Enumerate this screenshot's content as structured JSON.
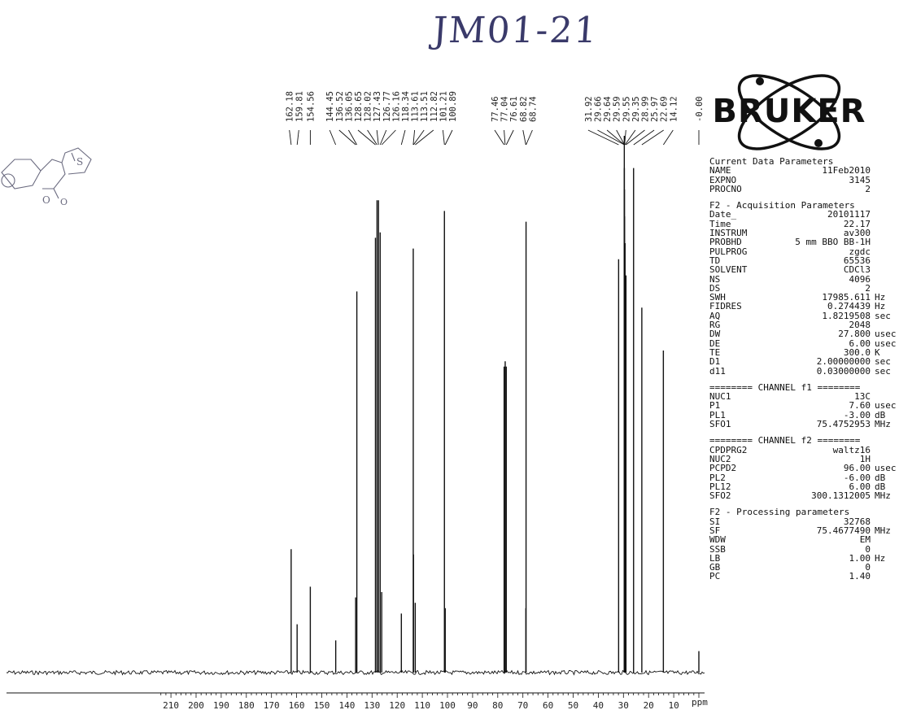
{
  "annotation_handwritten": "JM01-21",
  "logo": {
    "text": "BRUKER"
  },
  "chart_data": {
    "type": "nmr-spectrum",
    "nucleus": "13C",
    "x_unit": "ppm",
    "x_axis_reversed": true,
    "x_range": [
      -5,
      215
    ],
    "x_ticks": [
      210,
      200,
      190,
      180,
      170,
      160,
      150,
      140,
      130,
      120,
      110,
      100,
      90,
      80,
      70,
      60,
      50,
      40,
      30,
      20,
      10
    ],
    "peaks": [
      {
        "ppm": 162.18,
        "intensity": 0.23
      },
      {
        "ppm": 159.81,
        "intensity": 0.09
      },
      {
        "ppm": 154.56,
        "intensity": 0.16
      },
      {
        "ppm": 144.45,
        "intensity": 0.06
      },
      {
        "ppm": 136.52,
        "intensity": 0.14
      },
      {
        "ppm": 136.05,
        "intensity": 0.71
      },
      {
        "ppm": 128.65,
        "intensity": 0.81
      },
      {
        "ppm": 128.02,
        "intensity": 0.88
      },
      {
        "ppm": 127.43,
        "intensity": 0.88
      },
      {
        "ppm": 126.77,
        "intensity": 0.82
      },
      {
        "ppm": 126.16,
        "intensity": 0.15
      },
      {
        "ppm": 118.34,
        "intensity": 0.11
      },
      {
        "ppm": 113.61,
        "intensity": 0.79
      },
      {
        "ppm": 113.51,
        "intensity": 0.22
      },
      {
        "ppm": 112.82,
        "intensity": 0.13
      },
      {
        "ppm": 101.21,
        "intensity": 0.86
      },
      {
        "ppm": 100.89,
        "intensity": 0.12
      },
      {
        "ppm": 77.46,
        "intensity": 0.57
      },
      {
        "ppm": 77.04,
        "intensity": 0.58
      },
      {
        "ppm": 76.61,
        "intensity": 0.57
      },
      {
        "ppm": 68.82,
        "intensity": 0.12
      },
      {
        "ppm": 68.74,
        "intensity": 0.84
      },
      {
        "ppm": 31.92,
        "intensity": 0.77
      },
      {
        "ppm": 29.66,
        "intensity": 1.0
      },
      {
        "ppm": 29.64,
        "intensity": 0.94
      },
      {
        "ppm": 29.59,
        "intensity": 0.9
      },
      {
        "ppm": 29.55,
        "intensity": 0.85
      },
      {
        "ppm": 29.35,
        "intensity": 0.8
      },
      {
        "ppm": 28.99,
        "intensity": 0.74
      },
      {
        "ppm": 25.97,
        "intensity": 0.94
      },
      {
        "ppm": 22.69,
        "intensity": 0.68
      },
      {
        "ppm": 14.12,
        "intensity": 0.6
      },
      {
        "ppm": 0.0,
        "intensity": 0.04
      }
    ],
    "peak_labels": [
      "162.18",
      "159.81",
      "154.56",
      "144.45",
      "136.52",
      "136.05",
      "128.65",
      "128.02",
      "127.43",
      "126.77",
      "126.16",
      "118.34",
      "113.61",
      "113.51",
      "112.82",
      "101.21",
      "100.89",
      "77.46",
      "77.04",
      "76.61",
      "68.82",
      "68.74",
      "31.92",
      "29.66",
      "29.64",
      "29.59",
      "29.55",
      "29.35",
      "28.99",
      "25.97",
      "22.69",
      "14.12",
      "-0.00"
    ]
  },
  "parameters": [
    {
      "title": "Current Data Parameters",
      "rows": [
        {
          "k": "NAME",
          "v": "11Feb2010",
          "u": ""
        },
        {
          "k": "EXPNO",
          "v": "3145",
          "u": ""
        },
        {
          "k": "PROCNO",
          "v": "2",
          "u": ""
        }
      ]
    },
    {
      "title": "F2 - Acquisition Parameters",
      "rows": [
        {
          "k": "Date_",
          "v": "20101117",
          "u": ""
        },
        {
          "k": "Time",
          "v": "22.17",
          "u": ""
        },
        {
          "k": "INSTRUM",
          "v": "av300",
          "u": ""
        },
        {
          "k": "PROBHD",
          "v": "5 mm BBO BB-1H",
          "u": ""
        },
        {
          "k": "PULPROG",
          "v": "zgdc",
          "u": ""
        },
        {
          "k": "TD",
          "v": "65536",
          "u": ""
        },
        {
          "k": "SOLVENT",
          "v": "CDCl3",
          "u": ""
        },
        {
          "k": "NS",
          "v": "4096",
          "u": ""
        },
        {
          "k": "DS",
          "v": "2",
          "u": ""
        },
        {
          "k": "SWH",
          "v": "17985.611",
          "u": "Hz"
        },
        {
          "k": "FIDRES",
          "v": "0.274439",
          "u": "Hz"
        },
        {
          "k": "AQ",
          "v": "1.8219508",
          "u": "sec"
        },
        {
          "k": "RG",
          "v": "2048",
          "u": ""
        },
        {
          "k": "DW",
          "v": "27.800",
          "u": "usec"
        },
        {
          "k": "DE",
          "v": "6.00",
          "u": "usec"
        },
        {
          "k": "TE",
          "v": "300.0",
          "u": "K"
        },
        {
          "k": "D1",
          "v": "2.00000000",
          "u": "sec"
        },
        {
          "k": "d11",
          "v": "0.03000000",
          "u": "sec"
        }
      ]
    },
    {
      "title": "======== CHANNEL f1 ========",
      "rows": [
        {
          "k": "NUC1",
          "v": "13C",
          "u": ""
        },
        {
          "k": "P1",
          "v": "7.60",
          "u": "usec"
        },
        {
          "k": "PL1",
          "v": "-3.00",
          "u": "dB"
        },
        {
          "k": "SFO1",
          "v": "75.4752953",
          "u": "MHz"
        }
      ]
    },
    {
      "title": "======== CHANNEL f2 ========",
      "rows": [
        {
          "k": "CPDPRG2",
          "v": "waltz16",
          "u": ""
        },
        {
          "k": "NUC2",
          "v": "1H",
          "u": ""
        },
        {
          "k": "PCPD2",
          "v": "96.00",
          "u": "usec"
        },
        {
          "k": "PL2",
          "v": "-6.00",
          "u": "dB"
        },
        {
          "k": "PL12",
          "v": "6.00",
          "u": "dB"
        },
        {
          "k": "SFO2",
          "v": "300.1312005",
          "u": "MHz"
        }
      ]
    },
    {
      "title": "F2 - Processing parameters",
      "rows": [
        {
          "k": "SI",
          "v": "32768",
          "u": ""
        },
        {
          "k": "SF",
          "v": "75.4677490",
          "u": "MHz"
        },
        {
          "k": "WDW",
          "v": "EM",
          "u": ""
        },
        {
          "k": "SSB",
          "v": "0",
          "u": ""
        },
        {
          "k": "LB",
          "v": "1.00",
          "u": "Hz"
        },
        {
          "k": "GB",
          "v": "0",
          "u": ""
        },
        {
          "k": "PC",
          "v": "1.40",
          "u": ""
        }
      ]
    }
  ]
}
